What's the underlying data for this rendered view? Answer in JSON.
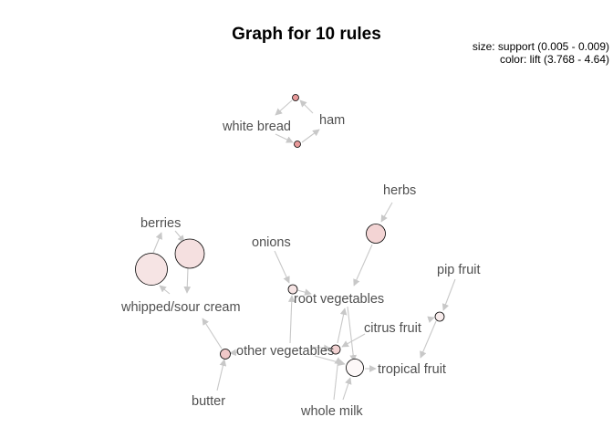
{
  "title": "Graph for 10 rules",
  "legend": {
    "size": "size: support (0.005 - 0.009)",
    "color": "color: lift (3.768 - 4.64)"
  },
  "colors": {
    "edge": "#c8c8c8",
    "label": "#505050",
    "low_lift": "#f6e4e4",
    "high_lift": "#e89a9a"
  },
  "items": {
    "white_bread": "white bread",
    "ham": "ham",
    "herbs": "herbs",
    "berries": "berries",
    "onions": "onions",
    "root_vegetables": "root vegetables",
    "pip_fruit": "pip fruit",
    "whipped_sour_cream": "whipped/sour cream",
    "citrus_fruit": "citrus fruit",
    "other_vegetables": "other vegetables",
    "tropical_fruit": "tropical fruit",
    "butter": "butter",
    "whole_milk": "whole milk"
  },
  "rules": [
    {
      "lhs": [
        "ham"
      ],
      "rhs": "white bread"
    },
    {
      "lhs": [
        "white bread"
      ],
      "rhs": "ham"
    },
    {
      "lhs": [
        "herbs"
      ],
      "rhs": "root vegetables"
    },
    {
      "lhs": [
        "berries"
      ],
      "rhs": "whipped/sour cream"
    },
    {
      "lhs": [
        "whipped/sour cream"
      ],
      "rhs": "berries"
    },
    {
      "lhs": [
        "onions",
        "other vegetables"
      ],
      "rhs": "root vegetables"
    },
    {
      "lhs": [
        "citrus fruit",
        "pip fruit"
      ],
      "rhs": "tropical fruit"
    },
    {
      "lhs": [
        "butter",
        "other vegetables"
      ],
      "rhs": "whipped/sour cream"
    },
    {
      "lhs": [
        "other vegetables",
        "citrus fruit"
      ],
      "rhs": "root vegetables"
    },
    {
      "lhs": [
        "whole milk",
        "other vegetables"
      ],
      "rhs": "tropical fruit"
    }
  ]
}
